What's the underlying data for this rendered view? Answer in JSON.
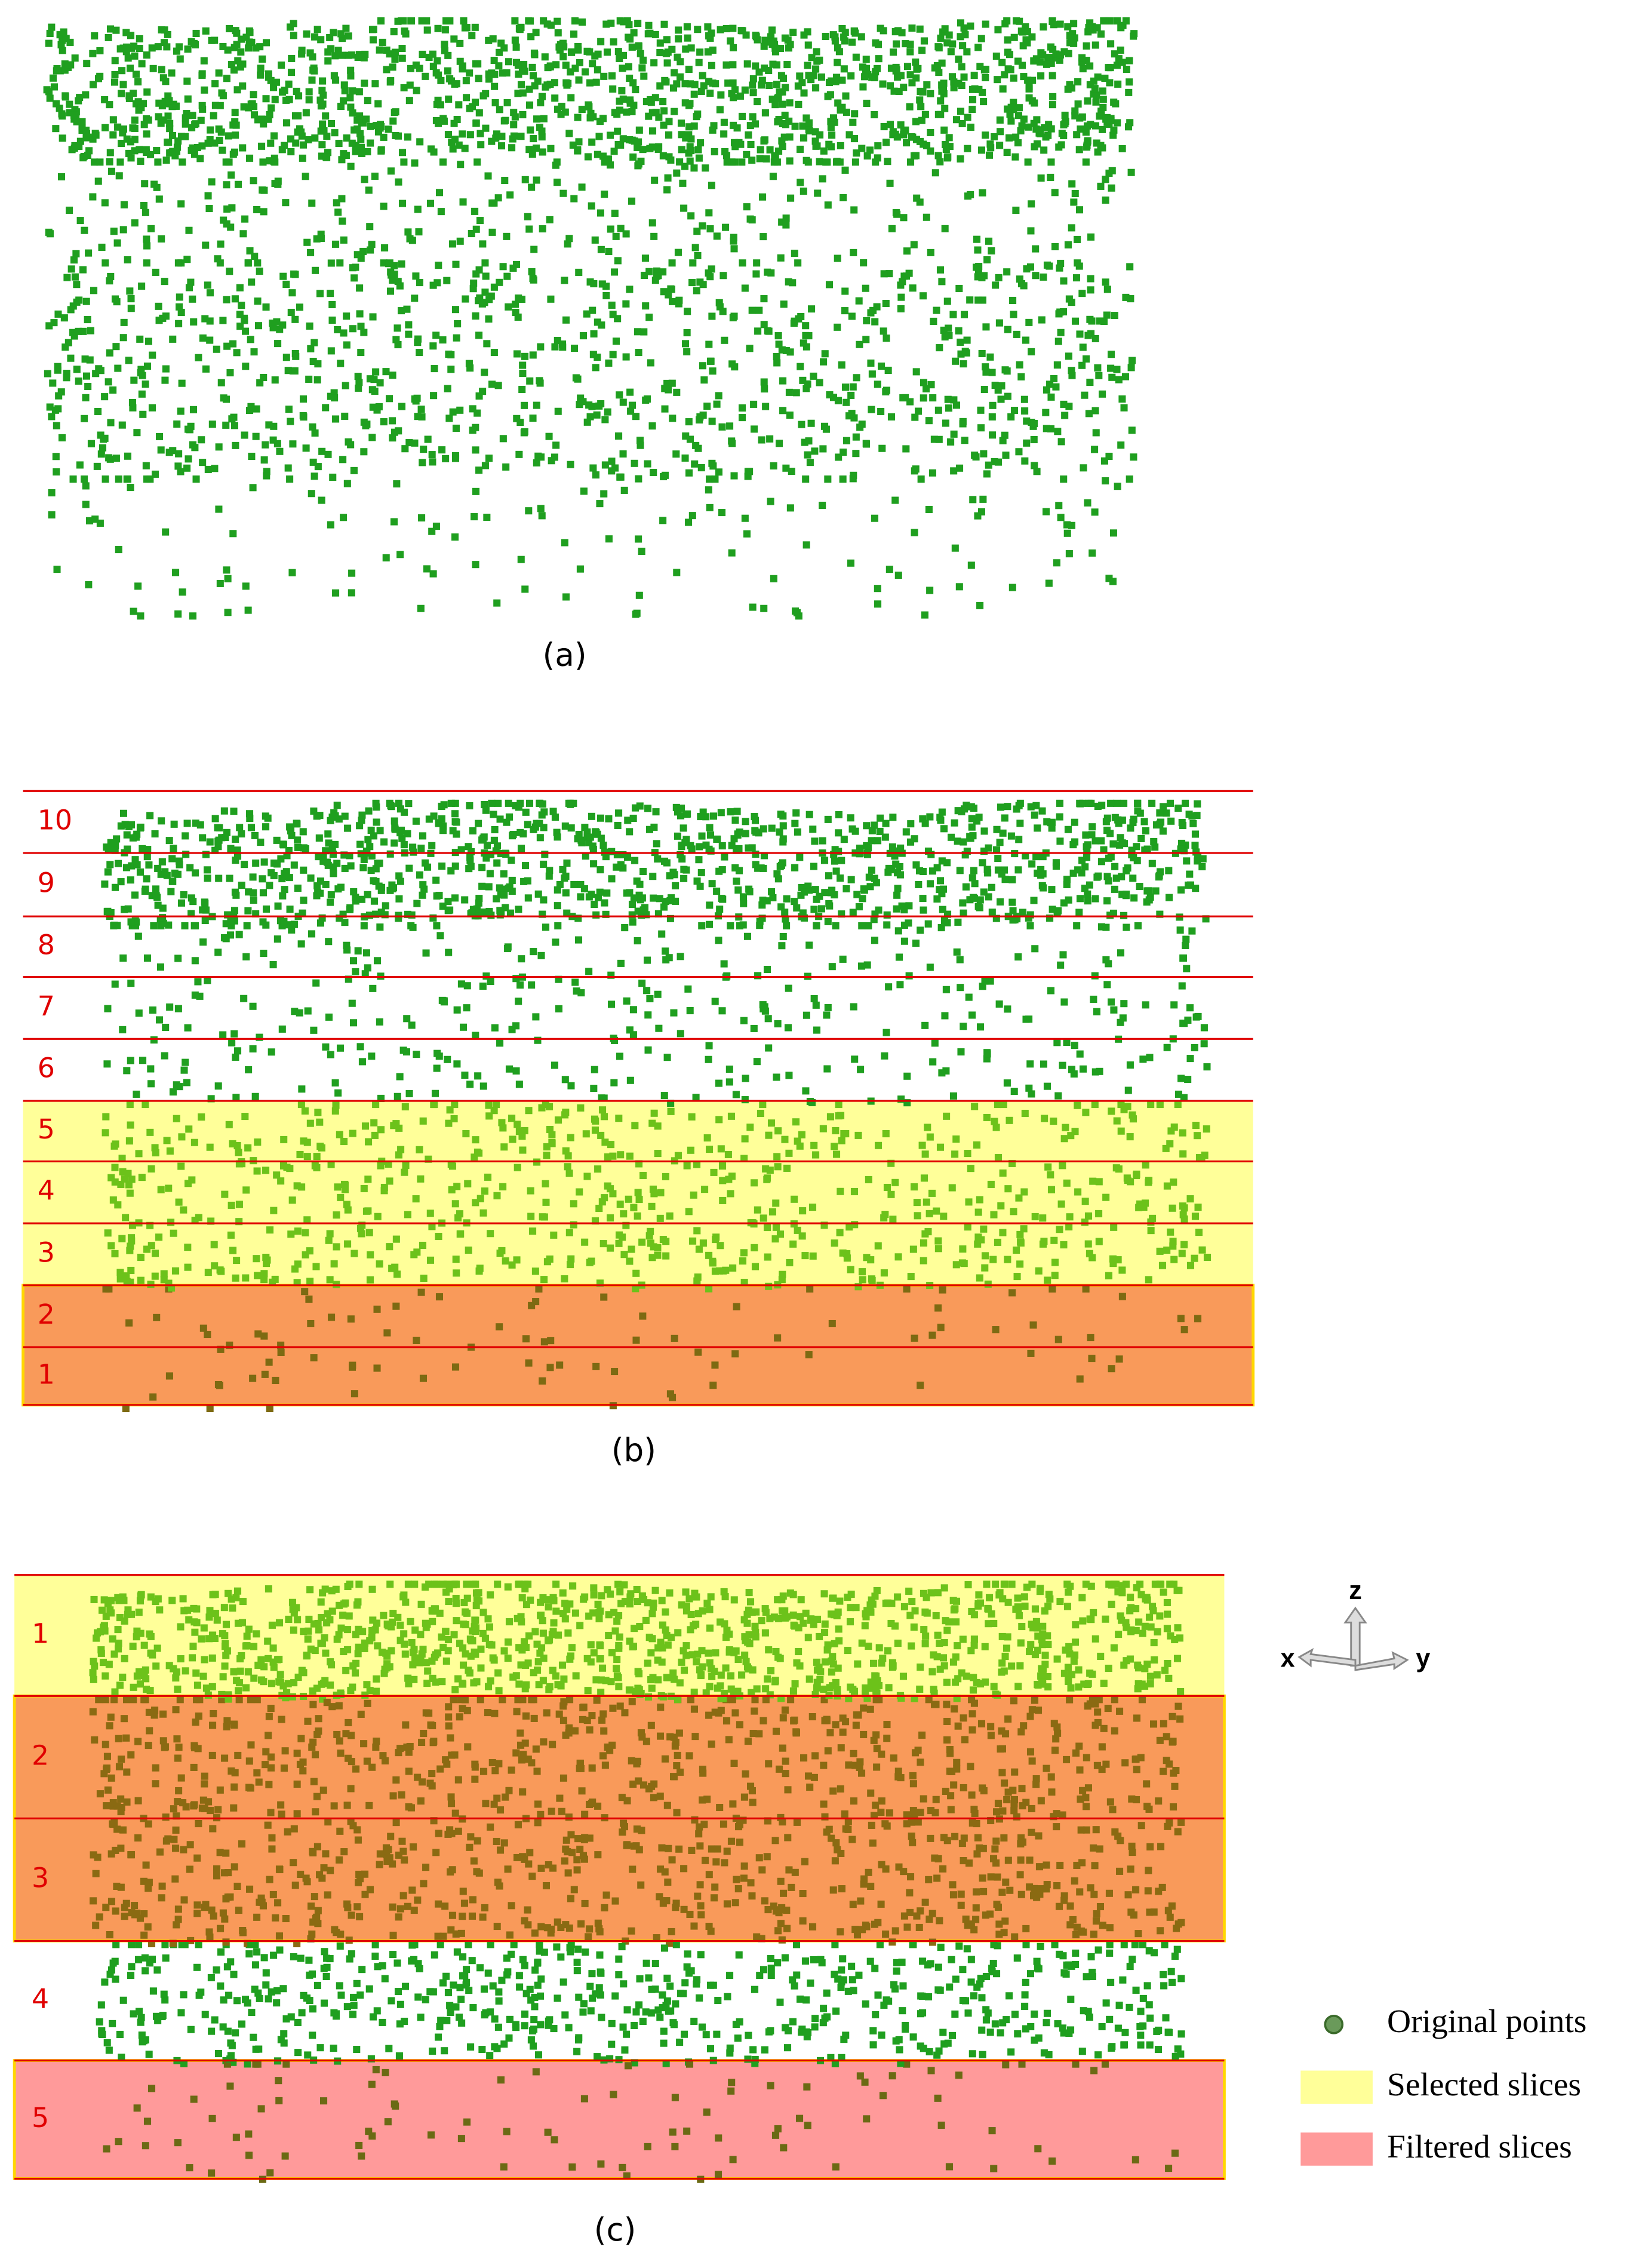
{
  "panel_a": {
    "caption": "(a)"
  },
  "panel_b": {
    "caption": "(b)",
    "slice_labels": [
      "10",
      "9",
      "8",
      "7",
      "6",
      "5",
      "4",
      "3",
      "2",
      "1"
    ]
  },
  "panel_c": {
    "caption": "(c)",
    "slice_labels": [
      "1",
      "2",
      "3",
      "4",
      "5"
    ]
  },
  "axes": {
    "z": "z",
    "x": "x",
    "y": "y"
  },
  "legend": {
    "items": [
      "Original points",
      "Selected slices",
      "Filtered slices"
    ]
  }
}
